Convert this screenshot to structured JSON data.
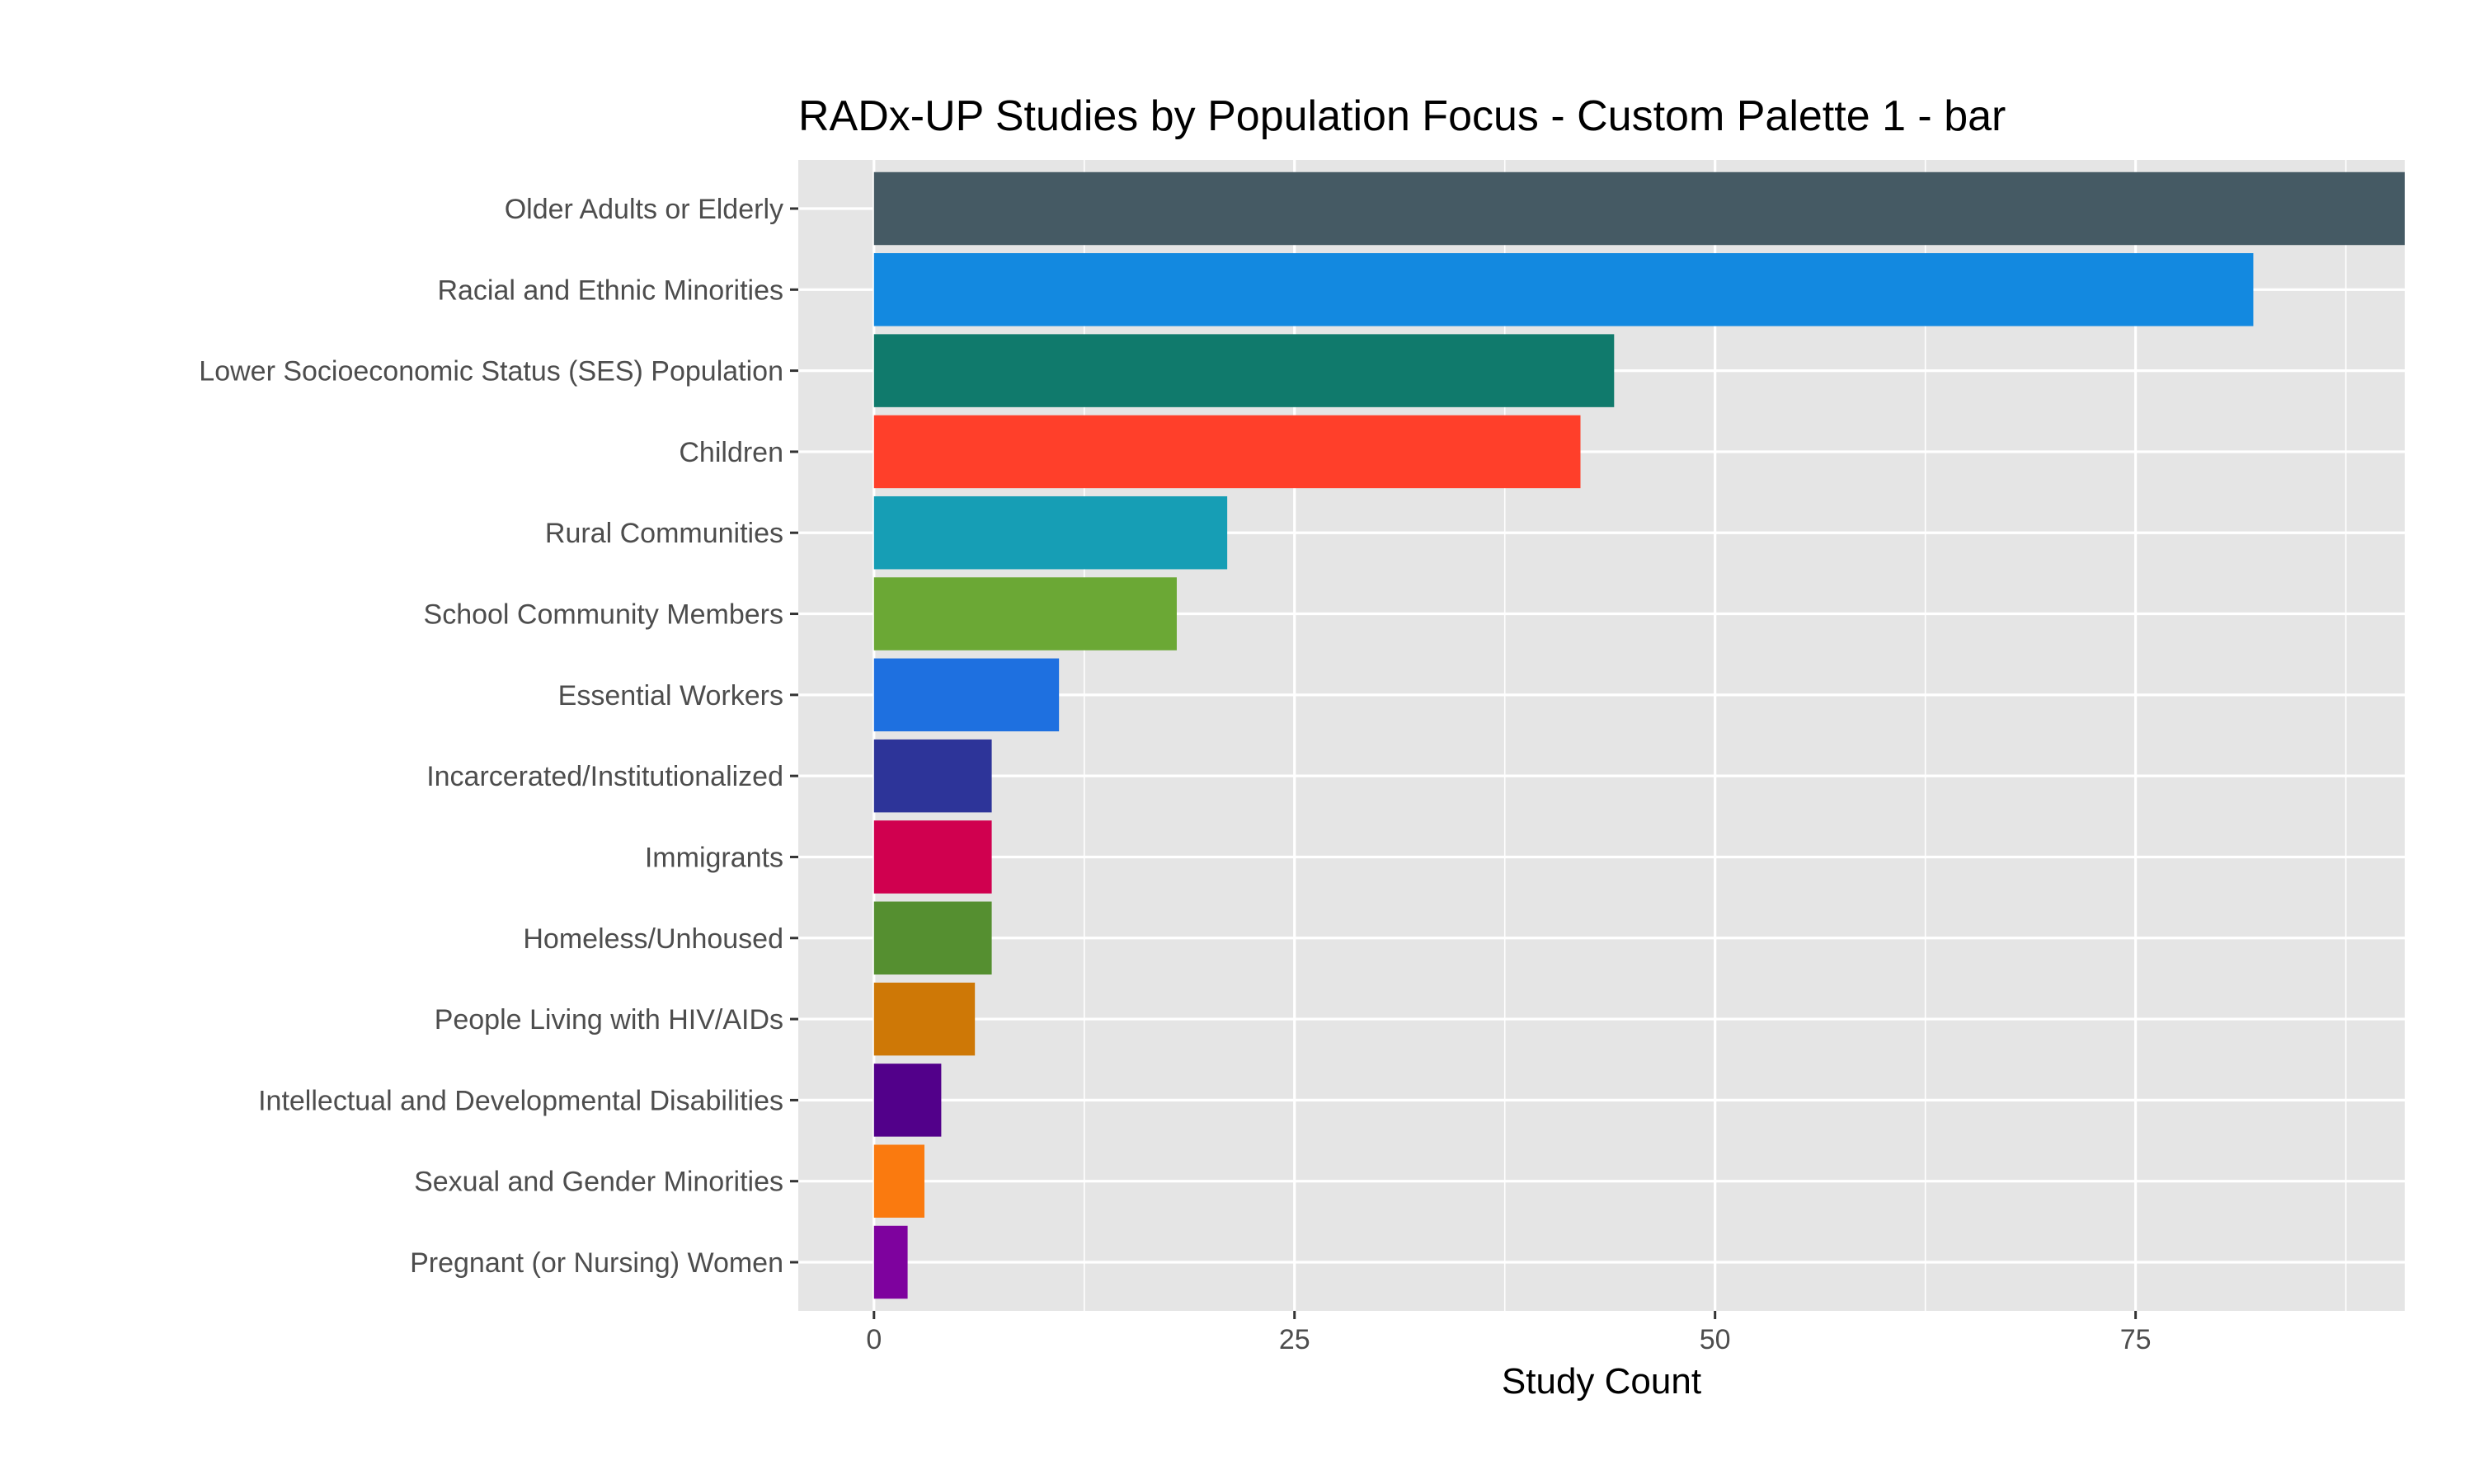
{
  "chart_data": {
    "type": "bar",
    "orientation": "horizontal",
    "title": "RADx-UP Studies by Population Focus - Custom Palette 1 - bar",
    "xlabel": "Study Count",
    "ylabel": "",
    "xlim": [
      -4.5,
      91
    ],
    "x_ticks": [
      0,
      25,
      50,
      75
    ],
    "x_tick_labels": [
      "0",
      "25",
      "50",
      "75"
    ],
    "grid": true,
    "legend": "none",
    "categories": [
      "Older Adults or Elderly",
      "Racial and Ethnic Minorities",
      "Lower Socioeconomic Status (SES) Population",
      "Children",
      "Rural Communities",
      "School Community Members",
      "Essential Workers",
      "Incarcerated/Institutionalized",
      "Immigrants",
      "Homeless/Unhoused",
      "People Living with HIV/AIDs",
      "Intellectual and Developmental Disabilities",
      "Sexual and Gender Minorities",
      "Pregnant (or Nursing) Women"
    ],
    "values": [
      91,
      82,
      44,
      42,
      21,
      18,
      11,
      7,
      7,
      7,
      6,
      4,
      3,
      2
    ],
    "colors": [
      "#455A64",
      "#1389E0",
      "#107A6C",
      "#FF3F2A",
      "#169EB5",
      "#6BA835",
      "#1E70E0",
      "#2D3499",
      "#D0004F",
      "#558F30",
      "#CE7806",
      "#52008A",
      "#FA7A0F",
      "#7E029E"
    ],
    "panel_background": "#E5E5E5",
    "grid_color": "#FFFFFF"
  }
}
